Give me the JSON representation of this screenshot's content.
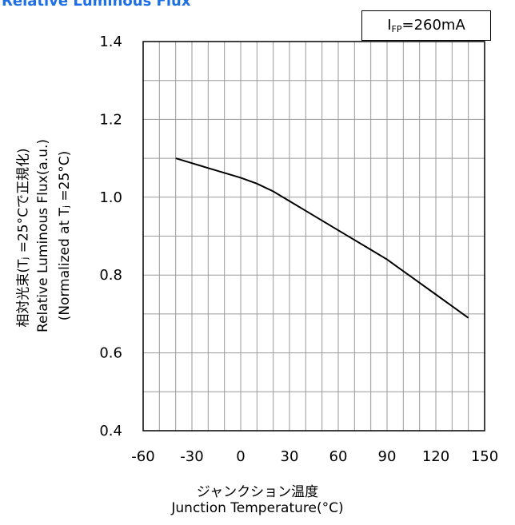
{
  "chart_data": {
    "type": "line",
    "title": "Relative Luminous Flux",
    "condition_prefix": "I",
    "condition_sub": "FP",
    "condition_value": "=260mA",
    "xlabel_jp": "ジャンクション温度",
    "xlabel": "Junction Temperature(°C)",
    "ylabel_lines": [
      "相対光束(Tⱼ =25°Cで正規化)",
      "Relative Luminous Flux(a.u.)",
      "(Normalized at Tⱼ =25°C)"
    ],
    "xlim": [
      -60,
      150
    ],
    "ylim": [
      0.4,
      1.4
    ],
    "x_ticks": [
      "-60",
      "-30",
      "0",
      "30",
      "60",
      "90",
      "120",
      "150"
    ],
    "y_ticks": [
      "0.4",
      "0.6",
      "0.8",
      "1.0",
      "1.2",
      "1.4"
    ],
    "grid": true,
    "series": [
      {
        "x": [
          -40,
          -20,
          0,
          10,
          20,
          40,
          60,
          80,
          90,
          100,
          120,
          140
        ],
        "y": [
          1.1,
          1.075,
          1.05,
          1.035,
          1.015,
          0.965,
          0.915,
          0.865,
          0.84,
          0.81,
          0.75,
          0.69
        ]
      }
    ]
  }
}
